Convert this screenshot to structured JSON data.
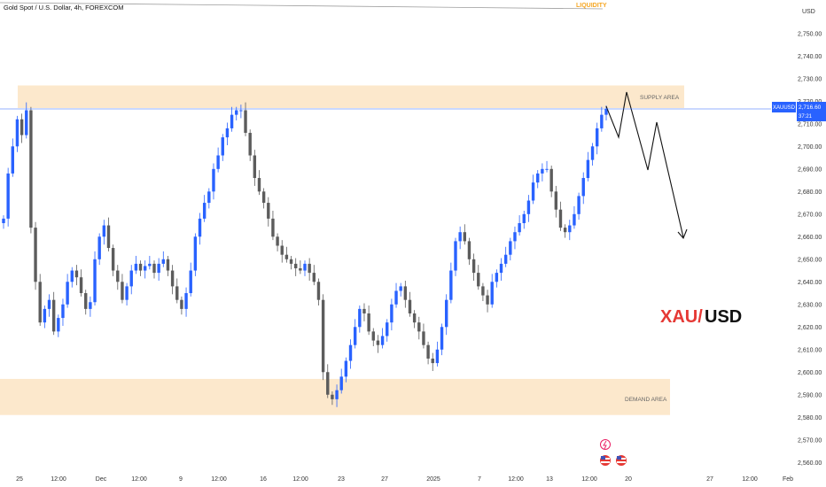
{
  "header": {
    "symbol_title": "Gold Spot / U.S. Dollar, 4h, FOREXCOM",
    "currency": "USD"
  },
  "annotations": {
    "liquidity": "LIQUIDITY",
    "supply": "SUPPLY AREA",
    "demand": "DEMAND AREA",
    "watermark_left": "XAU/",
    "watermark_right": "USD"
  },
  "price_tag": {
    "ticker": "XAUUSD",
    "price": "2,716.60",
    "countdown": "37:21",
    "level": 2716.6
  },
  "colors": {
    "bull": "#2962ff",
    "bear": "#5c5c5c",
    "zone": "#fce8cc",
    "liquidity": "#f5a623",
    "tag": "#2962ff",
    "watermark_red": "#e53935",
    "watermark_dark": "#111111"
  },
  "chart_data": {
    "type": "candlestick",
    "timeframe": "4h",
    "y_axis_labels": [
      "2,750.00",
      "2,740.00",
      "2,730.00",
      "2,720.00",
      "2,710.00",
      "2,700.00",
      "2,690.00",
      "2,680.00",
      "2,670.00",
      "2,660.00",
      "2,650.00",
      "2,640.00",
      "2,630.00",
      "2,620.00",
      "2,610.00",
      "2,600.00",
      "2,590.00",
      "2,580.00",
      "2,570.00",
      "2,560.00"
    ],
    "y_values": [
      2750,
      2740,
      2730,
      2720,
      2710,
      2700,
      2690,
      2680,
      2670,
      2660,
      2650,
      2640,
      2630,
      2620,
      2610,
      2600,
      2590,
      2580,
      2570,
      2560
    ],
    "x_axis_labels": [
      "25",
      "12:00",
      "Dec",
      "12:00",
      "9",
      "12:00",
      "16",
      "12:00",
      "23",
      "27",
      "2025",
      "7",
      "12:00",
      "13",
      "12:00",
      "20",
      "27",
      "12:00",
      "Feb"
    ],
    "ylim": [
      2555,
      2757
    ],
    "zones": {
      "supply": [
        2717,
        2727
      ],
      "demand": [
        2581,
        2597
      ]
    },
    "closes": [
      2668,
      2688,
      2700,
      2712,
      2705,
      2716,
      2664,
      2640,
      2622,
      2628,
      2632,
      2618,
      2624,
      2630,
      2640,
      2645,
      2642,
      2635,
      2628,
      2631,
      2650,
      2660,
      2665,
      2655,
      2645,
      2640,
      2632,
      2638,
      2645,
      2648,
      2645,
      2647,
      2648,
      2644,
      2648,
      2650,
      2645,
      2638,
      2632,
      2628,
      2635,
      2645,
      2660,
      2668,
      2675,
      2680,
      2690,
      2696,
      2704,
      2708,
      2714,
      2716,
      2716,
      2706,
      2696,
      2686,
      2680,
      2675,
      2668,
      2660,
      2656,
      2652,
      2650,
      2648,
      2646,
      2645,
      2648,
      2644,
      2640,
      2632,
      2600,
      2590,
      2588,
      2592,
      2598,
      2605,
      2612,
      2620,
      2628,
      2626,
      2618,
      2614,
      2612,
      2616,
      2622,
      2630,
      2636,
      2638,
      2632,
      2626,
      2622,
      2618,
      2612,
      2606,
      2604,
      2610,
      2620,
      2632,
      2645,
      2658,
      2662,
      2658,
      2650,
      2644,
      2638,
      2634,
      2630,
      2640,
      2644,
      2648,
      2652,
      2658,
      2662,
      2666,
      2670,
      2676,
      2684,
      2688,
      2690,
      2690,
      2680,
      2672,
      2664,
      2662,
      2665,
      2670,
      2678,
      2686,
      2694,
      2700,
      2708,
      2714,
      2716.6
    ]
  }
}
